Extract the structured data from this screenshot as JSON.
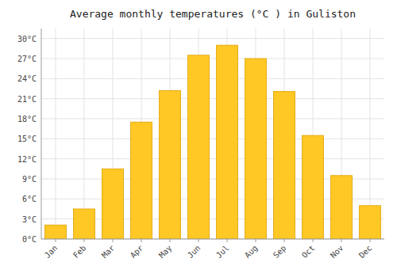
{
  "chart_data": {
    "type": "bar",
    "title": "Average monthly temperatures (°C ) in Guliston",
    "categories": [
      "Jan",
      "Feb",
      "Mar",
      "Apr",
      "May",
      "Jun",
      "Jul",
      "Aug",
      "Sep",
      "Oct",
      "Nov",
      "Dec"
    ],
    "values": [
      2.1,
      4.5,
      10.5,
      17.5,
      22.2,
      27.5,
      29.0,
      27.0,
      22.1,
      15.5,
      9.5,
      5.0
    ],
    "color": "#FFC825",
    "ylim": [
      0,
      31.5
    ],
    "yticks": [
      {
        "value": 0,
        "label": "0°C"
      },
      {
        "value": 3,
        "label": "3°C"
      },
      {
        "value": 6,
        "label": "6°C"
      },
      {
        "value": 9,
        "label": "9°C"
      },
      {
        "value": 12,
        "label": "12°C"
      },
      {
        "value": 15,
        "label": "15°C"
      },
      {
        "value": 18,
        "label": "18°C"
      },
      {
        "value": 21,
        "label": "21°C"
      },
      {
        "value": 24,
        "label": "24°C"
      },
      {
        "value": 27,
        "label": "27°C"
      },
      {
        "value": 30,
        "label": "30°C"
      }
    ],
    "grid": true
  }
}
